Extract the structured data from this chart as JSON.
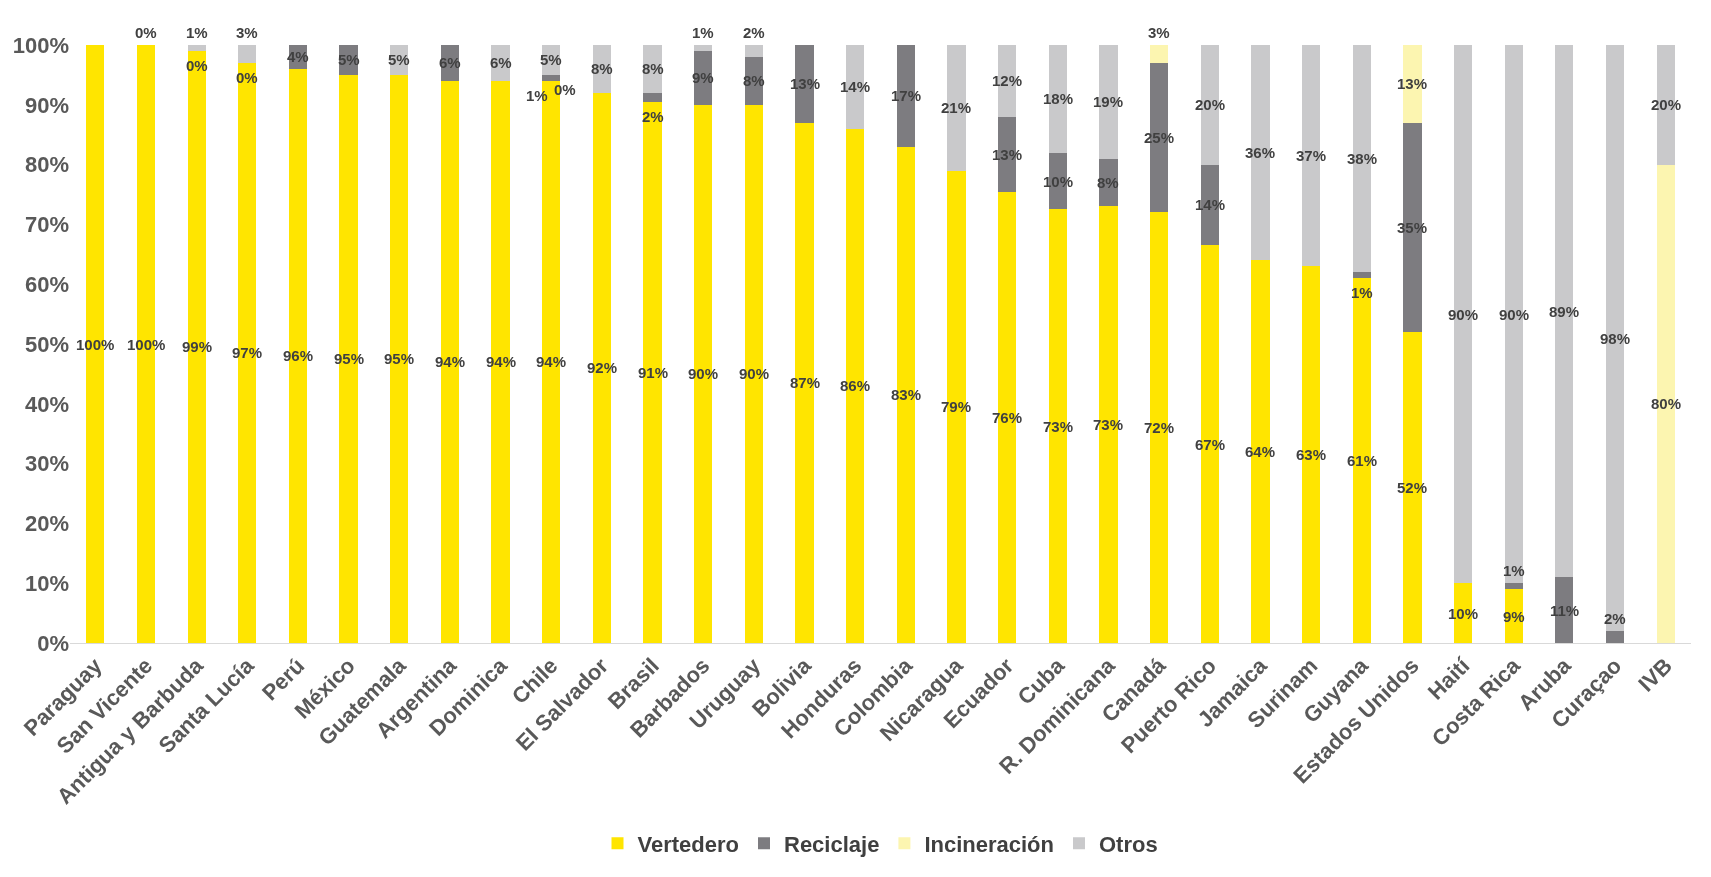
{
  "chart_data": {
    "type": "bar",
    "stacked": true,
    "legend": "bottom",
    "categories": [
      "Paraguay",
      "San Vicente",
      "Antigua y Barbuda",
      "Santa Lucía",
      "Perú",
      "México",
      "Guatemala",
      "Argentina",
      "Dominica",
      "Chile",
      "El Salvador",
      "Brasil",
      "Barbados",
      "Uruguay",
      "Bolivia",
      "Honduras",
      "Colombia",
      "Nicaragua",
      "Ecuador",
      "Cuba",
      "R. Dominicana",
      "Canadá",
      "Puerto Rico",
      "Jamaica",
      "Surinam",
      "Guyana",
      "Estados Unidos",
      "Haití",
      "Costa Rica",
      "Aruba",
      "Curaçao",
      "IVB"
    ],
    "ylim": [
      0,
      100
    ],
    "yticks": [
      {
        "value": 0,
        "label": "0%"
      },
      {
        "value": 10,
        "label": "10%"
      },
      {
        "value": 20,
        "label": "20%"
      },
      {
        "value": 30,
        "label": "30%"
      },
      {
        "value": 40,
        "label": "40%"
      },
      {
        "value": 50,
        "label": "50%"
      },
      {
        "value": 60,
        "label": "60%"
      },
      {
        "value": 70,
        "label": "70%"
      },
      {
        "value": 80,
        "label": "80%"
      },
      {
        "value": 90,
        "label": "90%"
      },
      {
        "value": 100,
        "label": "100%"
      }
    ],
    "series": [
      {
        "name": "Vertedero",
        "color": "#ffe500",
        "values": [
          100,
          100,
          99,
          97,
          96,
          95,
          95,
          94,
          94,
          94,
          92,
          90.5,
          90,
          90,
          87,
          86,
          83,
          79,
          75.5,
          72.5,
          73,
          72,
          66.5,
          64,
          63,
          61,
          52,
          10,
          9,
          0,
          0,
          0
        ],
        "value_labels": [
          "100%",
          "100%",
          "99%",
          "97%",
          "96%",
          "95%",
          "95%",
          "94%",
          "94%",
          "94%",
          "92%",
          "91%",
          "90%",
          "90%",
          "87%",
          "86%",
          "83%",
          "79%",
          "76%",
          "73%",
          "73%",
          "72%",
          "67%",
          "64%",
          "63%",
          "61%",
          "52%",
          "10%",
          "9%",
          null,
          null,
          null
        ]
      },
      {
        "name": "Reciclaje",
        "color": "#7d7c80",
        "values": [
          0,
          0,
          0,
          0,
          4,
          5,
          0,
          6,
          0,
          1,
          0,
          1.5,
          9,
          8,
          13,
          0,
          17,
          0,
          12.5,
          9.5,
          8,
          25,
          13.5,
          0,
          0,
          1,
          35,
          0,
          1,
          11,
          2,
          0
        ],
        "value_labels": [
          null,
          null,
          "0%",
          "0%",
          "4%",
          "5%",
          null,
          "6%",
          null,
          "1%",
          null,
          "2%",
          "9%",
          "8%",
          "13%",
          null,
          "17%",
          null,
          "13%",
          "10%",
          "8%",
          "25%",
          "14%",
          null,
          null,
          "1%",
          "35%",
          null,
          "1%",
          "11%",
          "2%",
          null
        ]
      },
      {
        "name": "Incineración",
        "color": "#fcf5b0",
        "values": [
          0,
          0,
          0,
          0,
          0,
          0,
          0,
          0,
          0,
          0,
          0,
          0,
          0,
          0,
          0,
          0,
          0,
          0,
          0,
          0,
          0,
          3,
          0,
          0,
          0,
          0,
          13,
          0,
          0,
          0,
          0,
          80
        ],
        "value_labels": [
          null,
          null,
          null,
          null,
          null,
          null,
          null,
          null,
          null,
          "0%",
          null,
          null,
          null,
          null,
          null,
          null,
          null,
          null,
          null,
          null,
          null,
          "3%",
          null,
          null,
          null,
          null,
          "13%",
          null,
          null,
          null,
          null,
          "80%"
        ]
      },
      {
        "name": "Otros",
        "color": "#c9c9cb",
        "values": [
          0,
          0,
          1,
          3,
          0,
          0,
          5,
          0,
          6,
          5,
          8,
          8,
          1,
          2,
          0,
          14,
          0,
          21,
          12,
          18,
          19,
          0,
          20,
          36,
          37,
          38,
          0,
          90,
          90,
          89,
          98,
          20
        ],
        "value_labels": [
          null,
          "0%",
          "1%",
          "3%",
          null,
          null,
          "5%",
          null,
          "6%",
          "5%",
          "8%",
          "8%",
          "1%",
          "2%",
          null,
          "14%",
          null,
          "21%",
          "12%",
          "18%",
          "19%",
          null,
          "20%",
          "36%",
          "37%",
          "38%",
          null,
          "90%",
          "90%",
          "89%",
          "98%",
          "20%"
        ]
      }
    ]
  }
}
